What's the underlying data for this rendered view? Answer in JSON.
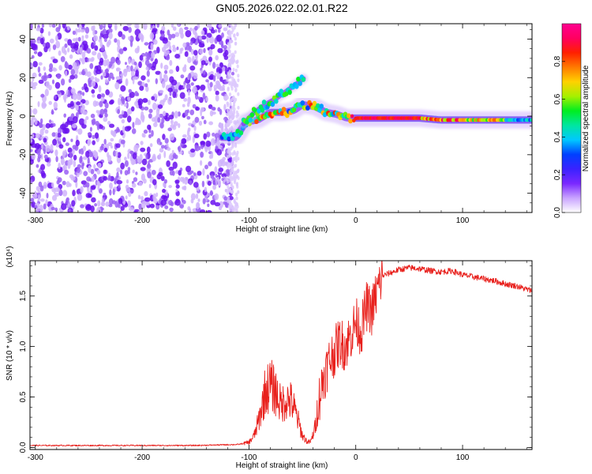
{
  "title": "GN05.2026.022.02.01.R22",
  "chart_data": [
    {
      "type": "heatmap",
      "name": "spectrogram",
      "xlabel": "Height of straight line (km)",
      "ylabel": "Frequency (Hz)",
      "xlim": [
        -305,
        165
      ],
      "ylim": [
        -50,
        48
      ],
      "xticks": [
        -300,
        -200,
        -100,
        0,
        100
      ],
      "yticks": [
        -40,
        -20,
        0,
        20,
        40
      ],
      "colorbar": {
        "label": "Normalized spectral amplitude",
        "range": [
          0,
          1
        ],
        "ticks": [
          0.0,
          0.2,
          0.4,
          0.6,
          0.8
        ],
        "colors": [
          "#ffffff",
          "#c9a4ff",
          "#7a28ff",
          "#3a22ff",
          "#0040ff",
          "#00c8ff",
          "#00e6a0",
          "#00ee20",
          "#a6f000",
          "#ffd200",
          "#ff7a00",
          "#ff2000",
          "#ff0060",
          "#ff0090"
        ]
      },
      "noise_region": {
        "x_from": -305,
        "x_to": -115,
        "y_from": -50,
        "y_to": 48,
        "level": 0.25
      },
      "branches": [
        {
          "name": "main trace",
          "points": [
            [
              -125,
              -11
            ],
            [
              -112,
              -11
            ],
            [
              -103,
              -3
            ],
            [
              -92,
              -2
            ],
            [
              -80,
              2
            ],
            [
              -68,
              2
            ],
            [
              -58,
              3
            ],
            [
              -50,
              6
            ],
            [
              -38,
              5
            ],
            [
              -28,
              2
            ],
            [
              -18,
              1
            ],
            [
              -8,
              -1
            ],
            [
              0,
              -1
            ],
            [
              20,
              -1
            ],
            [
              60,
              -1
            ],
            [
              80,
              -2
            ],
            [
              100,
              -2
            ],
            [
              120,
              -2
            ],
            [
              165,
              -2
            ]
          ]
        },
        {
          "name": "upper branch",
          "points": [
            [
              -105,
              -4
            ],
            [
              -95,
              2
            ],
            [
              -85,
              6
            ],
            [
              -75,
              9
            ],
            [
              -65,
              13
            ],
            [
              -55,
              17
            ],
            [
              -48,
              20
            ]
          ]
        }
      ],
      "xlabel_text": "Height of straight line (km)"
    },
    {
      "type": "line",
      "name": "snr",
      "title": "",
      "xlabel": "Height of straight line (km)",
      "ylabel": "SNR (10 * v/v)",
      "scale_note": "(x10⁴)",
      "xlim": [
        -305,
        165
      ],
      "ylim": [
        -0.02,
        1.85
      ],
      "xticks": [
        -300,
        -200,
        -100,
        0,
        100
      ],
      "yticks": [
        0.0,
        0.5,
        1.0,
        1.5
      ],
      "ytick_labels": [
        "0.0",
        "0.5",
        "1.0",
        "1.5"
      ],
      "series": [
        {
          "name": "SNR",
          "color": "#e8201c",
          "x": [
            -305,
            -250,
            -200,
            -150,
            -110,
            -100,
            -95,
            -90,
            -85,
            -80,
            -75,
            -70,
            -65,
            -60,
            -55,
            -50,
            -45,
            -42,
            -38,
            -35,
            -30,
            -25,
            -20,
            -15,
            -10,
            -5,
            0,
            5,
            10,
            15,
            20,
            25,
            30,
            40,
            50,
            60,
            70,
            80,
            90,
            100,
            110,
            120,
            130,
            140,
            150,
            165
          ],
          "y": [
            0.02,
            0.02,
            0.02,
            0.02,
            0.03,
            0.05,
            0.12,
            0.3,
            0.55,
            0.62,
            0.55,
            0.42,
            0.48,
            0.45,
            0.3,
            0.12,
            0.05,
            0.06,
            0.2,
            0.45,
            0.7,
            0.85,
            0.95,
            1.05,
            1.0,
            1.1,
            1.25,
            1.15,
            1.4,
            1.35,
            1.55,
            1.7,
            1.72,
            1.76,
            1.78,
            1.77,
            1.75,
            1.74,
            1.75,
            1.71,
            1.69,
            1.67,
            1.65,
            1.62,
            1.6,
            1.55
          ]
        }
      ]
    }
  ]
}
